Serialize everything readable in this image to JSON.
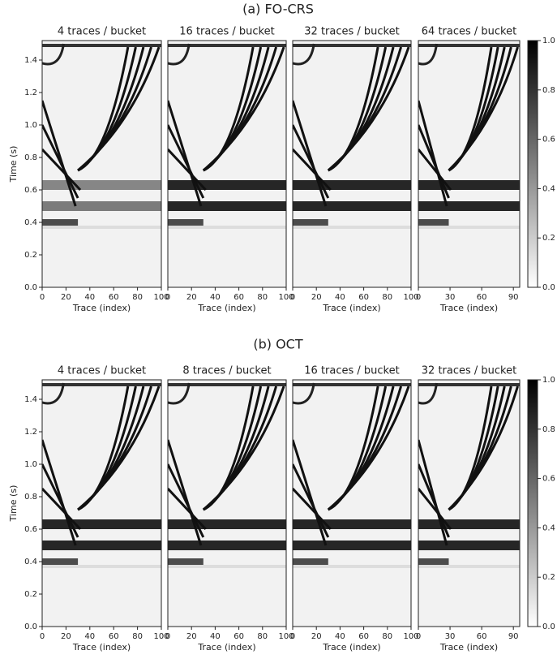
{
  "chart_data": [
    {
      "type": "image",
      "title": "(a) FO-CRS",
      "ylabel": "Time (s)",
      "xlabel": "Trace (index)",
      "ylim": [
        0,
        1.52
      ],
      "yticks": [
        {
          "value": 0,
          "label": "0.0"
        },
        {
          "value": 0.2,
          "label": "0.2"
        },
        {
          "value": 0.4,
          "label": "0.4"
        },
        {
          "value": 0.6,
          "label": "0.6"
        },
        {
          "value": 0.8,
          "label": "0.8"
        },
        {
          "value": 1.0,
          "label": "1.0"
        },
        {
          "value": 1.2,
          "label": "1.2"
        },
        {
          "value": 1.4,
          "label": "1.4"
        }
      ],
      "colorbar": {
        "lim": [
          0,
          1
        ],
        "ticks": [
          {
            "value": 0,
            "label": "0.0"
          },
          {
            "value": 0.2,
            "label": "0.2"
          },
          {
            "value": 0.4,
            "label": "0.4"
          },
          {
            "value": 0.6,
            "label": "0.6"
          },
          {
            "value": 0.8,
            "label": "0.8"
          },
          {
            "value": 1,
            "label": "1.0"
          }
        ]
      },
      "panels": [
        {
          "title": "4 traces / bucket",
          "xlim": [
            0,
            100
          ],
          "xticks": [
            0,
            20,
            40,
            60,
            80,
            100
          ]
        },
        {
          "title": "16 traces / bucket",
          "xlim": [
            0,
            100
          ],
          "xticks": [
            0,
            20,
            40,
            60,
            80,
            100
          ]
        },
        {
          "title": "32 traces / bucket",
          "xlim": [
            0,
            100
          ],
          "xticks": [
            0,
            20,
            40,
            60,
            80,
            100
          ]
        },
        {
          "title": "64 traces / bucket",
          "xlim": [
            0,
            96
          ],
          "xticks": [
            0,
            30,
            60,
            90
          ]
        }
      ]
    },
    {
      "type": "image",
      "title": "(b) OCT",
      "ylabel": "Time (s)",
      "xlabel": "Trace (index)",
      "ylim": [
        0,
        1.52
      ],
      "yticks": [
        {
          "value": 0,
          "label": "0.0"
        },
        {
          "value": 0.2,
          "label": "0.2"
        },
        {
          "value": 0.4,
          "label": "0.4"
        },
        {
          "value": 0.6,
          "label": "0.6"
        },
        {
          "value": 0.8,
          "label": "0.8"
        },
        {
          "value": 1.0,
          "label": "1.0"
        },
        {
          "value": 1.2,
          "label": "1.2"
        },
        {
          "value": 1.4,
          "label": "1.4"
        }
      ],
      "colorbar": {
        "lim": [
          0,
          1
        ],
        "ticks": [
          {
            "value": 0,
            "label": "0.0"
          },
          {
            "value": 0.2,
            "label": "0.2"
          },
          {
            "value": 0.4,
            "label": "0.4"
          },
          {
            "value": 0.6,
            "label": "0.6"
          },
          {
            "value": 0.8,
            "label": "0.8"
          },
          {
            "value": 1,
            "label": "1.0"
          }
        ]
      },
      "panels": [
        {
          "title": "4 traces / bucket",
          "xlim": [
            0,
            100
          ],
          "xticks": [
            0,
            20,
            40,
            60,
            80,
            100
          ]
        },
        {
          "title": "8 traces / bucket",
          "xlim": [
            0,
            100
          ],
          "xticks": [
            0,
            20,
            40,
            60,
            80,
            100
          ]
        },
        {
          "title": "16 traces / bucket",
          "xlim": [
            0,
            100
          ],
          "xticks": [
            0,
            20,
            40,
            60,
            80,
            100
          ]
        },
        {
          "title": "32 traces / bucket",
          "xlim": [
            0,
            96
          ],
          "xticks": [
            0,
            30,
            60,
            90
          ]
        }
      ]
    }
  ]
}
